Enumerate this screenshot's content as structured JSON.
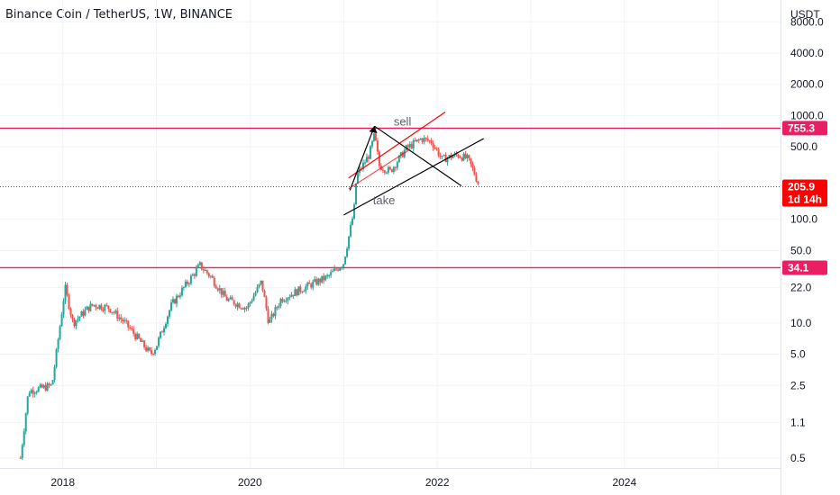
{
  "header": {
    "title": "Binance Coin / TetherUS, 1W, BINANCE"
  },
  "chart_data": {
    "type": "candlestick",
    "title": "Binance Coin / TetherUS, 1W, BINANCE",
    "y_unit": "USDT",
    "y_scale": "log",
    "ylim": [
      0.4,
      13000
    ],
    "xlim": [
      "2017-05-01",
      "2025-09-01"
    ],
    "x_ticks": [
      "2018",
      "2020",
      "2022",
      "2024"
    ],
    "y_ticks": [
      8000.0,
      4000.0,
      2000.0,
      1000.0,
      500.0,
      100.0,
      50.0,
      22.0,
      10.0,
      5.0,
      2.5,
      1.1,
      0.5
    ],
    "y_tick_labels": [
      "8000.0",
      "4000.0",
      "2000.0",
      "1000.0",
      "500.0",
      "100.0",
      "50.0",
      "22.0",
      "10.0",
      "5.0",
      "2.5",
      "1.1",
      "0.5"
    ],
    "grid": true,
    "colors": {
      "up": "#26a69a",
      "down": "#ef5350",
      "level": "#e91e63",
      "current": "#ff0000",
      "trend": "#000000",
      "channel": "#ff0000"
    },
    "price_path": [
      {
        "date": "2017-07-20",
        "close": 0.5
      },
      {
        "date": "2017-08-20",
        "close": 2.2
      },
      {
        "date": "2017-11-20",
        "close": 2.5
      },
      {
        "date": "2018-01-10",
        "close": 22
      },
      {
        "date": "2018-02-10",
        "close": 10
      },
      {
        "date": "2018-04-10",
        "close": 14
      },
      {
        "date": "2018-05-01",
        "close": 15
      },
      {
        "date": "2018-07-01",
        "close": 14
      },
      {
        "date": "2018-09-01",
        "close": 10
      },
      {
        "date": "2018-12-10",
        "close": 5
      },
      {
        "date": "2019-01-01",
        "close": 6
      },
      {
        "date": "2019-03-01",
        "close": 15
      },
      {
        "date": "2019-06-20",
        "close": 36
      },
      {
        "date": "2019-08-01",
        "close": 28
      },
      {
        "date": "2019-10-01",
        "close": 17
      },
      {
        "date": "2019-12-20",
        "close": 14
      },
      {
        "date": "2020-02-15",
        "close": 25
      },
      {
        "date": "2020-03-15",
        "close": 10
      },
      {
        "date": "2020-05-01",
        "close": 17
      },
      {
        "date": "2020-08-01",
        "close": 22
      },
      {
        "date": "2020-11-01",
        "close": 28
      },
      {
        "date": "2020-12-31",
        "close": 38
      },
      {
        "date": "2021-02-10",
        "close": 120
      },
      {
        "date": "2021-02-20",
        "close": 260
      },
      {
        "date": "2021-04-10",
        "close": 420
      },
      {
        "date": "2021-05-01",
        "close": 650
      },
      {
        "date": "2021-05-20",
        "close": 330
      },
      {
        "date": "2021-07-01",
        "close": 290
      },
      {
        "date": "2021-09-01",
        "close": 480
      },
      {
        "date": "2021-11-01",
        "close": 600
      },
      {
        "date": "2021-12-10",
        "close": 560
      },
      {
        "date": "2022-01-20",
        "close": 380
      },
      {
        "date": "2022-03-20",
        "close": 420
      },
      {
        "date": "2022-05-01",
        "close": 380
      },
      {
        "date": "2022-05-20",
        "close": 300
      },
      {
        "date": "2022-06-15",
        "close": 205.9
      }
    ],
    "price_levels": [
      {
        "value": 755.3,
        "label": "755.3"
      },
      {
        "value": 34.1,
        "label": "34.1"
      }
    ],
    "current_price": {
      "value": 205.9,
      "label": "205.9",
      "countdown": "1d 14h"
    },
    "trendlines": [
      {
        "name": "channel-upper",
        "from": {
          "date": "2021-01-20",
          "value": 250
        },
        "to": {
          "date": "2022-02-01",
          "value": 1080
        }
      },
      {
        "name": "descending-line",
        "from": {
          "date": "2021-05-01",
          "value": 790
        },
        "to": {
          "date": "2022-04-05",
          "value": 210
        }
      },
      {
        "name": "ascending-line",
        "from": {
          "date": "2021-01-01",
          "value": 110
        },
        "to": {
          "date": "2022-07-01",
          "value": 600
        }
      },
      {
        "name": "arrow-up",
        "from": {
          "date": "2021-01-25",
          "value": 190
        },
        "to": {
          "date": "2021-05-01",
          "value": 790
        }
      }
    ],
    "annotations": [
      {
        "text": "sell",
        "date": "2021-07-15",
        "value": 800
      },
      {
        "text": "take",
        "date": "2021-04-25",
        "value": 140
      }
    ]
  }
}
